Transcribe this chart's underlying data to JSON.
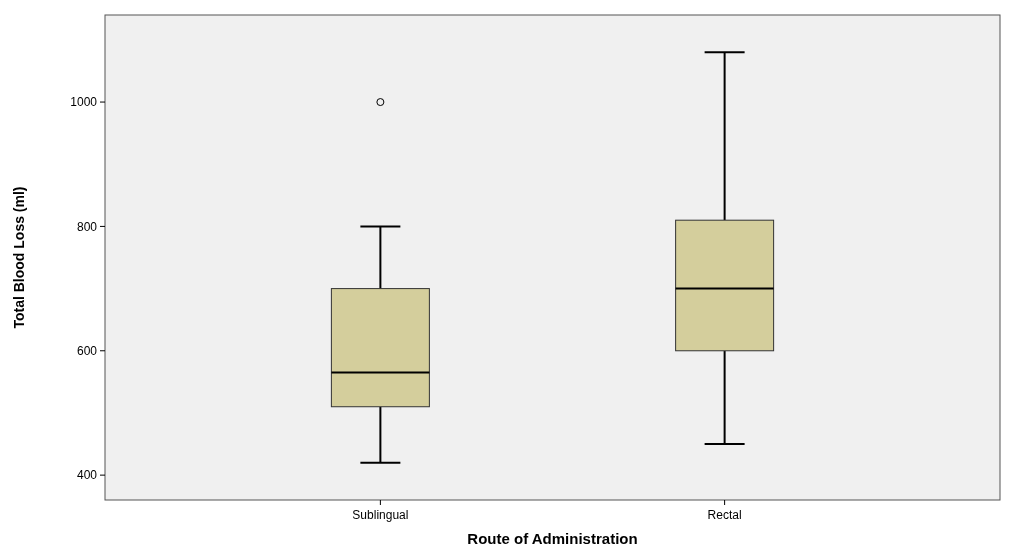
{
  "chart_data": {
    "type": "box",
    "xlabel": "Route of Administration",
    "ylabel": "Total Blood Loss (ml)",
    "categories": [
      "Sublingual",
      "Rectal"
    ],
    "boxes": [
      {
        "low": 420,
        "q1": 510,
        "median": 565,
        "q3": 700,
        "high": 800,
        "outliers": [
          1000
        ]
      },
      {
        "low": 450,
        "q1": 600,
        "median": 700,
        "q3": 810,
        "high": 1080
      }
    ],
    "color": "#d4ce9c",
    "ylim": [
      360,
      1140
    ],
    "yticks": [
      400,
      600,
      800,
      1000
    ],
    "grid": false
  }
}
